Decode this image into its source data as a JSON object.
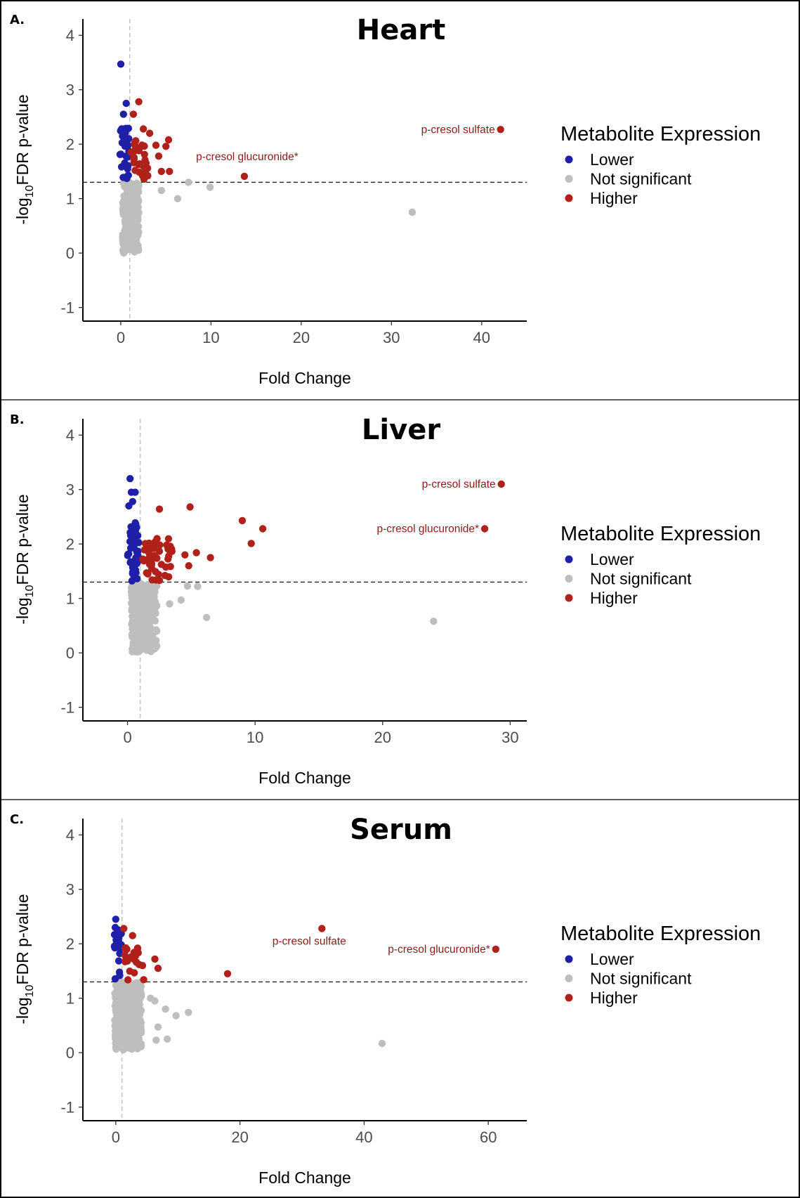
{
  "colors": {
    "lower": "#1f1fa8",
    "not_significant": "#bebebe",
    "higher": "#b0211a",
    "label_text": "#8b1a1a"
  },
  "legend": {
    "title": "Metabolite Expression",
    "items": [
      {
        "key": "lower",
        "label": "Lower"
      },
      {
        "key": "not_significant",
        "label": "Not significant"
      },
      {
        "key": "higher",
        "label": "Higher"
      }
    ]
  },
  "chart_data": [
    {
      "type": "scatter",
      "panel_letter": "A.",
      "title": "Heart",
      "xlabel": "Fold Change",
      "ylabel": "-log10FDR p-value",
      "xlim": [
        -4.2,
        45
      ],
      "ylim": [
        -1.25,
        4.3
      ],
      "xticks": [
        0,
        10,
        20,
        30,
        40
      ],
      "yticks": [
        -1,
        0,
        1,
        2,
        3,
        4
      ],
      "hline": 1.3,
      "vline": 1,
      "grid": false,
      "legend_position": "right",
      "seed": 11,
      "dense_ns": {
        "x": [
          0.2,
          2.0
        ],
        "y": [
          0.0,
          1.3
        ],
        "count": 260
      },
      "dense_lower": {
        "x": [
          -0.1,
          0.9
        ],
        "y": [
          1.32,
          2.3
        ],
        "count": 30
      },
      "dense_higher": {
        "x": [
          1.1,
          3.0
        ],
        "y": [
          1.32,
          2.1
        ],
        "count": 26
      },
      "points": [
        {
          "x": 0.0,
          "y": 3.47,
          "group": "lower"
        },
        {
          "x": 0.6,
          "y": 2.75,
          "group": "lower"
        },
        {
          "x": 0.3,
          "y": 2.55,
          "group": "lower"
        },
        {
          "x": 0.1,
          "y": 2.28,
          "group": "lower"
        },
        {
          "x": 2.0,
          "y": 2.78,
          "group": "higher"
        },
        {
          "x": 1.4,
          "y": 2.55,
          "group": "higher"
        },
        {
          "x": 2.5,
          "y": 2.28,
          "group": "higher"
        },
        {
          "x": 3.2,
          "y": 2.2,
          "group": "higher"
        },
        {
          "x": 3.9,
          "y": 1.98,
          "group": "higher"
        },
        {
          "x": 4.2,
          "y": 1.78,
          "group": "higher"
        },
        {
          "x": 5.0,
          "y": 1.96,
          "group": "higher"
        },
        {
          "x": 5.3,
          "y": 2.08,
          "group": "higher"
        },
        {
          "x": 4.5,
          "y": 1.5,
          "group": "higher"
        },
        {
          "x": 5.4,
          "y": 1.5,
          "group": "higher"
        },
        {
          "x": 2.8,
          "y": 1.65,
          "group": "higher"
        },
        {
          "x": 13.7,
          "y": 1.41,
          "group": "higher"
        },
        {
          "x": 42.1,
          "y": 2.27,
          "group": "higher"
        },
        {
          "x": 4.5,
          "y": 1.15,
          "group": "not_significant"
        },
        {
          "x": 6.3,
          "y": 1.0,
          "group": "not_significant"
        },
        {
          "x": 7.5,
          "y": 1.3,
          "group": "not_significant"
        },
        {
          "x": 9.9,
          "y": 1.21,
          "group": "not_significant"
        },
        {
          "x": 32.3,
          "y": 0.75,
          "group": "not_significant"
        }
      ],
      "annotations": [
        {
          "text": "p-cresol sulfate",
          "x": 42.1,
          "y": 2.27,
          "anchor": "end",
          "dx": -8,
          "dy": 0
        },
        {
          "text": "p-cresol glucuronide*",
          "x": 13.7,
          "y": 1.41,
          "anchor": "middle",
          "dx": 4,
          "dy": -28
        }
      ]
    },
    {
      "type": "scatter",
      "panel_letter": "B.",
      "title": "Liver",
      "xlabel": "Fold Change",
      "ylabel": "-log10FDR p-value",
      "xlim": [
        -3.5,
        31.3
      ],
      "ylim": [
        -1.25,
        4.3
      ],
      "xticks": [
        0,
        10,
        20,
        30
      ],
      "yticks": [
        -1,
        0,
        1,
        2,
        3,
        4
      ],
      "hline": 1.3,
      "vline": 1,
      "grid": false,
      "legend_position": "right",
      "seed": 23,
      "dense_ns": {
        "x": [
          0.3,
          2.3
        ],
        "y": [
          0.0,
          1.3
        ],
        "count": 270
      },
      "dense_lower": {
        "x": [
          0.0,
          0.9
        ],
        "y": [
          1.32,
          2.4
        ],
        "count": 44
      },
      "dense_higher": {
        "x": [
          1.1,
          3.5
        ],
        "y": [
          1.32,
          2.1
        ],
        "count": 44
      },
      "points": [
        {
          "x": 0.2,
          "y": 3.2,
          "group": "lower"
        },
        {
          "x": 0.3,
          "y": 2.95,
          "group": "lower"
        },
        {
          "x": 0.6,
          "y": 2.95,
          "group": "lower"
        },
        {
          "x": 0.1,
          "y": 2.7,
          "group": "lower"
        },
        {
          "x": 0.4,
          "y": 2.78,
          "group": "lower"
        },
        {
          "x": 2.5,
          "y": 2.64,
          "group": "higher"
        },
        {
          "x": 4.9,
          "y": 2.68,
          "group": "higher"
        },
        {
          "x": 9.0,
          "y": 2.43,
          "group": "higher"
        },
        {
          "x": 10.6,
          "y": 2.28,
          "group": "higher"
        },
        {
          "x": 9.7,
          "y": 2.01,
          "group": "higher"
        },
        {
          "x": 5.4,
          "y": 1.84,
          "group": "higher"
        },
        {
          "x": 6.5,
          "y": 1.75,
          "group": "higher"
        },
        {
          "x": 4.5,
          "y": 1.8,
          "group": "higher"
        },
        {
          "x": 4.8,
          "y": 1.6,
          "group": "higher"
        },
        {
          "x": 29.3,
          "y": 3.1,
          "group": "higher"
        },
        {
          "x": 28.0,
          "y": 2.28,
          "group": "higher"
        },
        {
          "x": 4.2,
          "y": 0.97,
          "group": "not_significant"
        },
        {
          "x": 4.7,
          "y": 1.23,
          "group": "not_significant"
        },
        {
          "x": 5.5,
          "y": 1.22,
          "group": "not_significant"
        },
        {
          "x": 3.3,
          "y": 0.9,
          "group": "not_significant"
        },
        {
          "x": 6.2,
          "y": 0.65,
          "group": "not_significant"
        },
        {
          "x": 24.0,
          "y": 0.58,
          "group": "not_significant"
        }
      ],
      "annotations": [
        {
          "text": "p-cresol sulfate",
          "x": 29.3,
          "y": 3.1,
          "anchor": "end",
          "dx": -8,
          "dy": 0
        },
        {
          "text": "p-cresol glucuronide*",
          "x": 28.0,
          "y": 2.28,
          "anchor": "end",
          "dx": -8,
          "dy": 0
        }
      ]
    },
    {
      "type": "scatter",
      "panel_letter": "C.",
      "title": "Serum",
      "xlabel": "Fold Change",
      "ylabel": "-log10FDR p-value",
      "xlim": [
        -5.3,
        66.2
      ],
      "ylim": [
        -1.25,
        4.3
      ],
      "xticks": [
        0,
        20,
        40,
        60
      ],
      "yticks": [
        -1,
        0,
        1,
        2,
        3,
        4
      ],
      "hline": 1.3,
      "vline": 1,
      "grid": false,
      "legend_position": "right",
      "seed": 37,
      "dense_ns": {
        "x": [
          -0.2,
          4.2
        ],
        "y": [
          0.05,
          1.3
        ],
        "count": 300
      },
      "dense_lower": {
        "x": [
          -0.3,
          0.9
        ],
        "y": [
          1.32,
          2.3
        ],
        "count": 22
      },
      "dense_higher": {
        "x": [
          1.2,
          4.0
        ],
        "y": [
          1.32,
          2.0
        ],
        "count": 20
      },
      "points": [
        {
          "x": 0.0,
          "y": 2.45,
          "group": "lower"
        },
        {
          "x": 1.3,
          "y": 2.28,
          "group": "higher"
        },
        {
          "x": 2.7,
          "y": 2.15,
          "group": "higher"
        },
        {
          "x": 4.3,
          "y": 1.6,
          "group": "higher"
        },
        {
          "x": 6.3,
          "y": 1.72,
          "group": "higher"
        },
        {
          "x": 6.8,
          "y": 1.55,
          "group": "higher"
        },
        {
          "x": 4.5,
          "y": 1.34,
          "group": "higher"
        },
        {
          "x": 18.0,
          "y": 1.45,
          "group": "higher"
        },
        {
          "x": 33.2,
          "y": 2.28,
          "group": "higher"
        },
        {
          "x": 61.2,
          "y": 1.9,
          "group": "higher"
        },
        {
          "x": 5.6,
          "y": 1.0,
          "group": "not_significant"
        },
        {
          "x": 6.3,
          "y": 0.95,
          "group": "not_significant"
        },
        {
          "x": 8.0,
          "y": 0.8,
          "group": "not_significant"
        },
        {
          "x": 9.7,
          "y": 0.68,
          "group": "not_significant"
        },
        {
          "x": 11.7,
          "y": 0.74,
          "group": "not_significant"
        },
        {
          "x": 6.8,
          "y": 0.47,
          "group": "not_significant"
        },
        {
          "x": 8.3,
          "y": 0.25,
          "group": "not_significant"
        },
        {
          "x": 6.5,
          "y": 0.23,
          "group": "not_significant"
        },
        {
          "x": 42.9,
          "y": 0.17,
          "group": "not_significant"
        }
      ],
      "annotations": [
        {
          "text": "p-cresol sulfate",
          "x": 33.2,
          "y": 2.28,
          "anchor": "middle",
          "dx": -18,
          "dy": 18
        },
        {
          "text": "p-cresol glucuronide*",
          "x": 61.2,
          "y": 1.9,
          "anchor": "end",
          "dx": -8,
          "dy": 0
        }
      ]
    }
  ]
}
